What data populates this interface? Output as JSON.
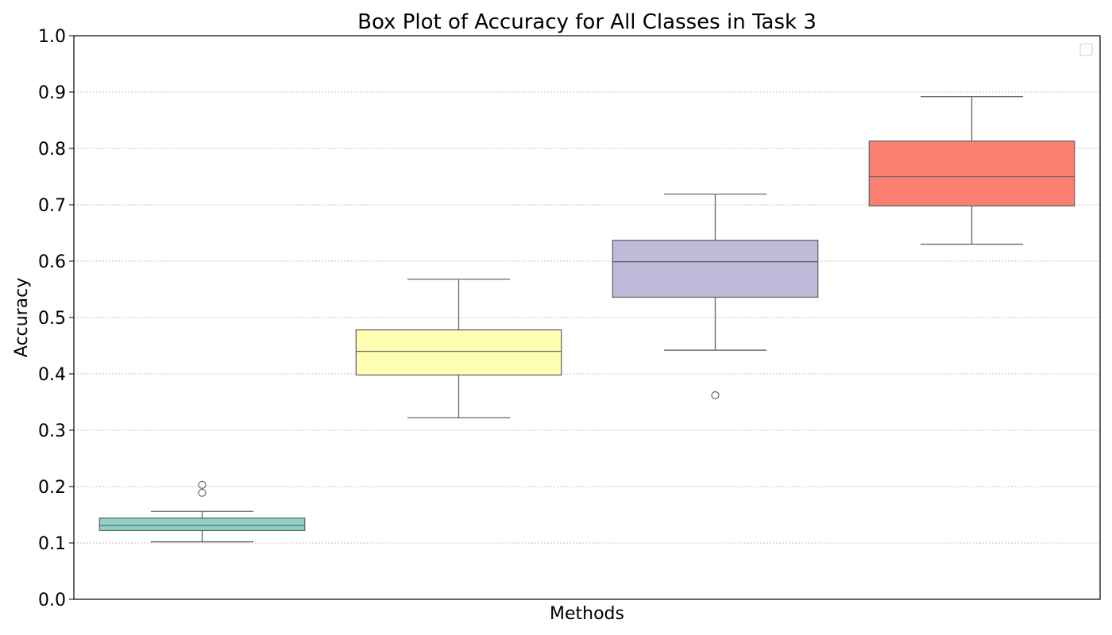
{
  "chart_data": {
    "type": "box",
    "title": "Box Plot of Accuracy for All Classes in Task 3",
    "xlabel": "Methods",
    "ylabel": "Accuracy",
    "ylim": [
      0.0,
      1.0
    ],
    "yticks": [
      "0.0",
      "0.1",
      "0.2",
      "0.3",
      "0.4",
      "0.5",
      "0.6",
      "0.7",
      "0.8",
      "0.9",
      "1.0"
    ],
    "grid": "horizontal-dotted",
    "legend": {
      "placement": "top-right",
      "entries": []
    },
    "boxes": [
      {
        "whisker_low": 0.102,
        "q1": 0.122,
        "median": 0.131,
        "q3": 0.144,
        "whisker_high": 0.156,
        "outliers": [
          0.189,
          0.203
        ],
        "color": "#8dd3c7"
      },
      {
        "whisker_low": 0.322,
        "q1": 0.398,
        "median": 0.44,
        "q3": 0.478,
        "whisker_high": 0.568,
        "outliers": [],
        "color": "#ffffb3"
      },
      {
        "whisker_low": 0.442,
        "q1": 0.536,
        "median": 0.599,
        "q3": 0.637,
        "whisker_high": 0.719,
        "outliers": [
          0.362
        ],
        "color": "#bebada"
      },
      {
        "whisker_low": 0.63,
        "q1": 0.698,
        "median": 0.75,
        "q3": 0.813,
        "whisker_high": 0.892,
        "outliers": [],
        "color": "#fb8072"
      }
    ]
  }
}
